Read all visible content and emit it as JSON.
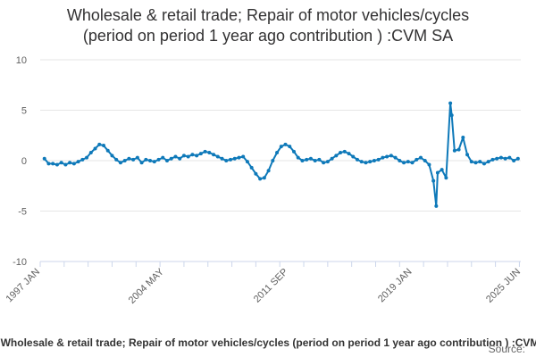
{
  "title": {
    "line1": "Wholesale & retail trade; Repair of motor vehicles/cycles",
    "line2": "(period on period 1 year ago contribution ) :CVM SA"
  },
  "legend_text": "Wholesale & retail trade; Repair of motor vehicles/cycles (period on period 1 year ago contribution ) :CVM SA",
  "source_text": "Source:",
  "colors": {
    "series": "#0e79b9",
    "grid": "#e6e6e6",
    "axis": "#ccd6eb"
  },
  "chart_data": {
    "type": "line",
    "title": "Wholesale & retail trade; Repair of motor vehicles/cycles (period on period 1 year ago contribution ) :CVM SA",
    "xlabel": "",
    "ylabel": "",
    "ylim": [
      -10,
      10
    ],
    "yticks": [
      10,
      5,
      0,
      -5,
      -10
    ],
    "xlim": [
      "1997-01",
      "2025-06"
    ],
    "xtick_labels": [
      "1997 JAN",
      "2004 MAY",
      "2011 SEP",
      "2019 JAN",
      "2025 JUN"
    ],
    "xtick_dates": [
      "1997-01",
      "2004-05",
      "2011-09",
      "2019-01",
      "2025-06"
    ],
    "grid": true,
    "legend_position": "bottom",
    "series": [
      {
        "name": "Wholesale & retail trade; Repair of motor vehicles/cycles (period on period 1 year ago contribution ) :CVM SA",
        "points": [
          [
            "1997-04",
            0.2
          ],
          [
            "1997-07",
            -0.3
          ],
          [
            "1997-10",
            -0.3
          ],
          [
            "1998-01",
            -0.4
          ],
          [
            "1998-04",
            -0.2
          ],
          [
            "1998-07",
            -0.4
          ],
          [
            "1998-10",
            -0.2
          ],
          [
            "1999-01",
            -0.3
          ],
          [
            "1999-04",
            -0.1
          ],
          [
            "1999-07",
            0.1
          ],
          [
            "1999-10",
            0.3
          ],
          [
            "2000-01",
            0.8
          ],
          [
            "2000-04",
            1.2
          ],
          [
            "2000-07",
            1.6
          ],
          [
            "2000-10",
            1.5
          ],
          [
            "2001-01",
            1.0
          ],
          [
            "2001-04",
            0.5
          ],
          [
            "2001-07",
            0.1
          ],
          [
            "2001-10",
            -0.2
          ],
          [
            "2002-01",
            0.0
          ],
          [
            "2002-04",
            0.2
          ],
          [
            "2002-07",
            0.1
          ],
          [
            "2002-10",
            0.3
          ],
          [
            "2003-01",
            -0.2
          ],
          [
            "2003-04",
            0.1
          ],
          [
            "2003-07",
            0.0
          ],
          [
            "2003-10",
            -0.1
          ],
          [
            "2004-01",
            0.1
          ],
          [
            "2004-04",
            0.3
          ],
          [
            "2004-07",
            0.0
          ],
          [
            "2004-10",
            0.2
          ],
          [
            "2005-01",
            0.4
          ],
          [
            "2005-04",
            0.2
          ],
          [
            "2005-07",
            0.5
          ],
          [
            "2005-10",
            0.4
          ],
          [
            "2006-01",
            0.6
          ],
          [
            "2006-04",
            0.5
          ],
          [
            "2006-07",
            0.7
          ],
          [
            "2006-10",
            0.9
          ],
          [
            "2007-01",
            0.8
          ],
          [
            "2007-04",
            0.6
          ],
          [
            "2007-07",
            0.4
          ],
          [
            "2007-10",
            0.2
          ],
          [
            "2008-01",
            0.0
          ],
          [
            "2008-04",
            0.1
          ],
          [
            "2008-07",
            0.2
          ],
          [
            "2008-10",
            0.3
          ],
          [
            "2009-01",
            0.4
          ],
          [
            "2009-04",
            -0.1
          ],
          [
            "2009-07",
            -0.7
          ],
          [
            "2009-10",
            -1.3
          ],
          [
            "2010-01",
            -1.8
          ],
          [
            "2010-04",
            -1.7
          ],
          [
            "2010-07",
            -1.0
          ],
          [
            "2010-10",
            0.0
          ],
          [
            "2011-01",
            0.8
          ],
          [
            "2011-04",
            1.4
          ],
          [
            "2011-07",
            1.6
          ],
          [
            "2011-10",
            1.4
          ],
          [
            "2012-01",
            0.9
          ],
          [
            "2012-04",
            0.3
          ],
          [
            "2012-07",
            0.0
          ],
          [
            "2012-10",
            0.1
          ],
          [
            "2013-01",
            0.2
          ],
          [
            "2013-04",
            0.0
          ],
          [
            "2013-07",
            0.1
          ],
          [
            "2013-10",
            -0.2
          ],
          [
            "2014-01",
            -0.1
          ],
          [
            "2014-04",
            0.2
          ],
          [
            "2014-07",
            0.5
          ],
          [
            "2014-10",
            0.8
          ],
          [
            "2015-01",
            0.9
          ],
          [
            "2015-04",
            0.7
          ],
          [
            "2015-07",
            0.4
          ],
          [
            "2015-10",
            0.1
          ],
          [
            "2016-01",
            -0.1
          ],
          [
            "2016-04",
            -0.2
          ],
          [
            "2016-07",
            -0.1
          ],
          [
            "2016-10",
            0.0
          ],
          [
            "2017-01",
            0.1
          ],
          [
            "2017-04",
            0.3
          ],
          [
            "2017-07",
            0.4
          ],
          [
            "2017-10",
            0.5
          ],
          [
            "2018-01",
            0.3
          ],
          [
            "2018-04",
            0.0
          ],
          [
            "2018-07",
            -0.2
          ],
          [
            "2018-10",
            -0.1
          ],
          [
            "2019-01",
            -0.2
          ],
          [
            "2019-04",
            0.1
          ],
          [
            "2019-07",
            0.3
          ],
          [
            "2019-10",
            0.0
          ],
          [
            "2020-01",
            -0.4
          ],
          [
            "2020-04",
            -2.0
          ],
          [
            "2020-06",
            -4.5
          ],
          [
            "2020-07",
            -1.2
          ],
          [
            "2020-10",
            -0.9
          ],
          [
            "2021-01",
            -1.7
          ],
          [
            "2021-04",
            5.7
          ],
          [
            "2021-05",
            4.5
          ],
          [
            "2021-07",
            1.0
          ],
          [
            "2021-10",
            1.1
          ],
          [
            "2022-01",
            2.3
          ],
          [
            "2022-04",
            0.6
          ],
          [
            "2022-07",
            -0.1
          ],
          [
            "2022-10",
            -0.2
          ],
          [
            "2023-01",
            -0.1
          ],
          [
            "2023-04",
            -0.3
          ],
          [
            "2023-07",
            -0.1
          ],
          [
            "2023-10",
            0.1
          ],
          [
            "2024-01",
            0.2
          ],
          [
            "2024-04",
            0.3
          ],
          [
            "2024-07",
            0.2
          ],
          [
            "2024-10",
            0.3
          ],
          [
            "2025-01",
            0.0
          ],
          [
            "2025-04",
            0.2
          ]
        ]
      }
    ]
  }
}
